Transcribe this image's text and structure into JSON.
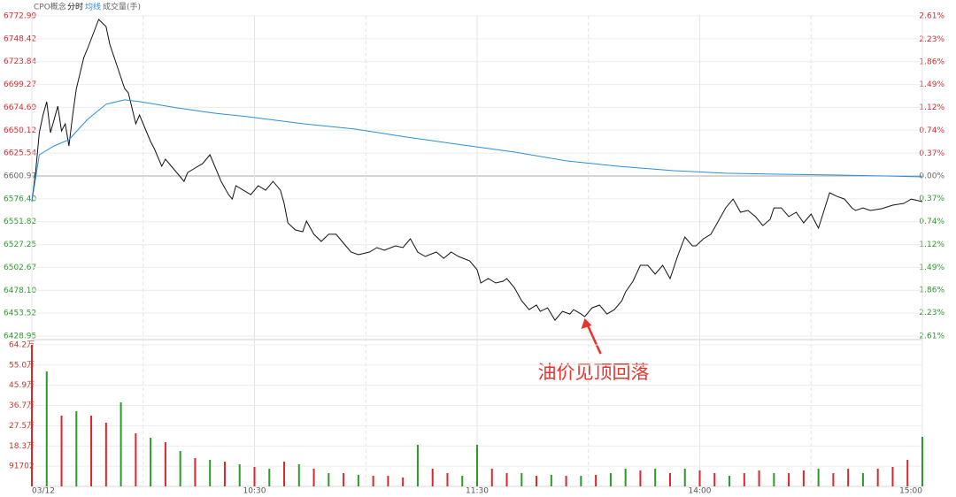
{
  "chart_data": [
    {
      "type": "line",
      "title": "CPO概念",
      "ylim": [
        6428.95,
        6772.99
      ],
      "yticks": [
        6772.99,
        6748.42,
        6723.84,
        6699.27,
        6674.69,
        6650.12,
        6625.54,
        6600.97,
        {
          "value": 6576.4,
          "label": "6576.40"
        },
        6551.82,
        6527.25,
        6502.67,
        {
          "value": 6478.1,
          "label": "6478.10"
        },
        6453.52,
        6428.95
      ],
      "y2lim": [
        -2.61,
        2.61
      ],
      "y2ticks": [
        {
          "value": 2.61,
          "label": "2.61%"
        },
        {
          "value": 2.23,
          "label": "2.23%"
        },
        {
          "value": 1.86,
          "label": "1.86%"
        },
        {
          "value": 1.49,
          "label": "1.49%"
        },
        {
          "value": 1.12,
          "label": "1.12%"
        },
        {
          "value": 0.74,
          "label": "0.74%"
        },
        {
          "value": 0.37,
          "label": "0.37%"
        },
        {
          "value": 0,
          "label": "0.00%"
        },
        {
          "value": -0.37,
          "label": "0.37%"
        },
        {
          "value": -0.74,
          "label": "0.74%"
        },
        {
          "value": -1.12,
          "label": "1.12%"
        },
        {
          "value": -1.49,
          "label": "1.49%"
        },
        {
          "value": -1.86,
          "label": "1.86%"
        },
        {
          "value": -2.23,
          "label": "2.23%"
        },
        {
          "value": -2.61,
          "label": "2.61%"
        }
      ],
      "xticks": [
        {
          "value": "09:30",
          "label": "03/12"
        },
        "10:30",
        "11:30",
        "14:00",
        "15:00"
      ],
      "up_color": "#d9272e",
      "down_color": "#2a9a2a",
      "grid": true,
      "series": [
        {
          "name": "分时",
          "color": "#111111",
          "x": [
            "09:30",
            "09:31",
            "09:32",
            "09:33",
            "09:34",
            "09:35",
            "09:36",
            "09:37",
            "09:38",
            "09:39",
            "09:40",
            "09:41",
            "09:42",
            "09:44",
            "09:45",
            "09:48",
            "09:50",
            "09:51",
            "09:53",
            "09:55",
            "09:56",
            "09:58",
            "09:59",
            "10:01",
            "10:02",
            "10:03",
            "10:05",
            "10:06",
            "10:08",
            "10:10",
            "10:11",
            "10:12",
            "10:14",
            "10:16",
            "10:18",
            "10:20",
            "10:21",
            "10:23",
            "10:24",
            "10:25",
            "10:27",
            "10:29",
            "10:31",
            "10:33",
            "10:35",
            "10:37",
            "10:38",
            "10:39",
            "10:41",
            "10:43",
            "10:44",
            "10:46",
            "10:48",
            "10:50",
            "10:52",
            "10:54",
            "10:56",
            "10:58",
            "11:01",
            "11:03",
            "11:05",
            "11:08",
            "11:10",
            "11:12",
            "11:14",
            "11:16",
            "11:19",
            "11:21",
            "11:23",
            "11:25",
            "11:28",
            "11:30",
            "13:01",
            "13:03",
            "13:05",
            "13:07",
            "13:08",
            "13:10",
            "13:12",
            "13:14",
            "13:16",
            "13:17",
            "13:19",
            "13:21",
            "13:23",
            "13:25",
            "13:26",
            "13:28",
            "13:29",
            "13:31",
            "13:33",
            "13:35",
            "13:37",
            "13:39",
            "13:40",
            "13:42",
            "13:44",
            "13:46",
            "13:48",
            "13:50",
            "13:52",
            "13:54",
            "13:56",
            "13:58",
            "13:59",
            "14:01",
            "14:03",
            "14:05",
            "14:07",
            "14:09",
            "14:11",
            "14:13",
            "14:15",
            "14:17",
            "14:19",
            "14:20",
            "14:22",
            "14:24",
            "14:26",
            "14:28",
            "14:30",
            "14:32",
            "14:33",
            "14:35",
            "14:37",
            "14:39",
            "14:41",
            "14:42",
            "14:44",
            "14:46",
            "14:49",
            "14:52",
            "14:55",
            "14:57",
            "15:00"
          ],
          "values": [
            6573.4,
            6604.7,
            6647.5,
            6666.5,
            6680.8,
            6647.5,
            6661.8,
            6676.0,
            6649.4,
            6657.0,
            6633.3,
            6666.5,
            6695.0,
            6728.3,
            6737.8,
            6769.2,
            6761.6,
            6742.6,
            6718.8,
            6695.0,
            6690.3,
            6657.0,
            6666.5,
            6647.5,
            6638.0,
            6630.4,
            6611.4,
            6619.0,
            6609.5,
            6600.0,
            6595.2,
            6604.7,
            6609.5,
            6614.2,
            6623.8,
            6604.7,
            6595.2,
            6580.9,
            6576.2,
            6590.5,
            6585.7,
            6580.9,
            6590.5,
            6585.7,
            6595.2,
            6585.7,
            6571.5,
            6550.6,
            6543.0,
            6541.1,
            6552.5,
            6538.3,
            6530.6,
            6538.3,
            6538.3,
            6528.7,
            6519.2,
            6516.4,
            6519.2,
            6524.0,
            6521.1,
            6525.9,
            6524.0,
            6533.5,
            6519.2,
            6514.5,
            6519.2,
            6512.5,
            6519.2,
            6514.5,
            6509.7,
            6500.2,
            6486.0,
            6490.7,
            6486.0,
            6487.9,
            6490.7,
            6481.2,
            6466.9,
            6457.4,
            6462.2,
            6455.5,
            6459.3,
            6446.0,
            6455.5,
            6452.6,
            6457.4,
            6452.6,
            6449.8,
            6459.3,
            6462.2,
            6452.6,
            6457.4,
            6466.9,
            6476.4,
            6487.9,
            6505.0,
            6505.0,
            6495.5,
            6505.0,
            6490.7,
            6514.5,
            6535.4,
            6525.9,
            6525.9,
            6533.5,
            6538.3,
            6552.5,
            6566.7,
            6576.2,
            6562.0,
            6563.9,
            6557.3,
            6547.7,
            6554.4,
            6566.7,
            6566.7,
            6557.3,
            6562.0,
            6550.6,
            6560.1,
            6544.9,
            6557.3,
            6582.9,
            6579.0,
            6576.2,
            6566.7,
            6563.9,
            6566.7,
            6563.9,
            6565.8,
            6569.6,
            6571.5,
            6576.2,
            6573.4
          ]
        },
        {
          "name": "均线",
          "color": "#2b8fd6",
          "x": [
            "09:30",
            "09:32",
            "09:36",
            "09:40",
            "09:45",
            "09:50",
            "09:55",
            "09:59",
            "10:09",
            "10:19",
            "10:28",
            "10:43",
            "10:57",
            "11:11",
            "11:26",
            "13:10",
            "13:24",
            "13:38",
            "13:53",
            "14:07",
            "14:21",
            "14:36",
            "14:50",
            "15:00"
          ],
          "values": [
            6573.4,
            6623.8,
            6633.3,
            6640.0,
            6661.8,
            6678.0,
            6682.8,
            6680.9,
            6674.2,
            6668.5,
            6664.7,
            6657.1,
            6651.4,
            6642.8,
            6634.3,
            6626.7,
            6617.2,
            6611.4,
            6606.7,
            6603.9,
            6602.9,
            6602.0,
            6601.0,
            6600.0
          ]
        }
      ],
      "annotations": [
        {
          "text": "油价见顶回落",
          "x": "13:29",
          "y": 6449.8
        }
      ]
    },
    {
      "type": "bar",
      "title": "成交量(手)",
      "ylim": [
        0,
        642000
      ],
      "yticks": [
        {
          "value": 642000,
          "label": "64.2万"
        },
        {
          "value": 550000,
          "label": "55.0万"
        },
        {
          "value": 459000,
          "label": "45.9万"
        },
        {
          "value": 367000,
          "label": "36.7万"
        },
        {
          "value": 275000,
          "label": "27.5万"
        },
        {
          "value": 183000,
          "label": "18.3万"
        },
        91702
      ],
      "x": [
        "09:30",
        "09:34",
        "09:38",
        "09:42",
        "09:46",
        "09:50",
        "09:54",
        "09:58",
        "10:02",
        "10:06",
        "10:10",
        "10:14",
        "10:18",
        "10:22",
        "10:26",
        "10:30",
        "10:34",
        "10:38",
        "10:42",
        "10:46",
        "10:50",
        "10:54",
        "10:58",
        "11:02",
        "11:06",
        "11:10",
        "11:14",
        "11:18",
        "11:22",
        "11:26",
        "11:30",
        "13:04",
        "13:08",
        "13:12",
        "13:16",
        "13:20",
        "13:24",
        "13:28",
        "13:32",
        "13:36",
        "13:40",
        "13:44",
        "13:48",
        "13:52",
        "13:56",
        "14:00",
        "14:04",
        "14:08",
        "14:12",
        "14:16",
        "14:20",
        "14:24",
        "14:28",
        "14:32",
        "14:36",
        "14:40",
        "14:44",
        "14:48",
        "14:52",
        "14:56",
        "15:00"
      ],
      "values": [
        642000,
        521600,
        321000,
        341000,
        321000,
        288900,
        381100,
        240700,
        220700,
        200600,
        160500,
        128400,
        120400,
        112300,
        100300,
        88300,
        80200,
        112300,
        100300,
        80200,
        60200,
        60200,
        52200,
        48100,
        48100,
        40100,
        188600,
        80200,
        60200,
        48100,
        188600,
        80200,
        60200,
        60200,
        48100,
        52200,
        48100,
        48100,
        52200,
        60200,
        80200,
        72200,
        80200,
        60200,
        80200,
        72200,
        60200,
        48100,
        60200,
        72200,
        60200,
        60200,
        72200,
        80200,
        60200,
        80200,
        60200,
        80200,
        88300,
        120400,
        224700
      ],
      "colors": [
        "#d9272e",
        "#2a9a2a",
        "#d9272e",
        "#2a9a2a",
        "#d9272e",
        "#d9272e",
        "#2a9a2a",
        "#d9272e",
        "#2a9a2a",
        "#d9272e",
        "#2a9a2a",
        "#d9272e",
        "#2a9a2a",
        "#d9272e",
        "#2a9a2a",
        "#d9272e",
        "#2a9a2a",
        "#d9272e",
        "#2a9a2a",
        "#d9272e",
        "#2a9a2a",
        "#d9272e",
        "#2a9a2a",
        "#d9272e",
        "#d9272e",
        "#d9272e",
        "#2a9a2a",
        "#d9272e",
        "#d9272e",
        "#2a9a2a",
        "#2a9a2a",
        "#d9272e",
        "#d9272e",
        "#2a9a2a",
        "#d9272e",
        "#2a9a2a",
        "#d9272e",
        "#2a9a2a",
        "#d9272e",
        "#2a9a2a",
        "#2a9a2a",
        "#d9272e",
        "#2a9a2a",
        "#d9272e",
        "#2a9a2a",
        "#d9272e",
        "#d9272e",
        "#2a9a2a",
        "#d9272e",
        "#d9272e",
        "#2a9a2a",
        "#d9272e",
        "#d9272e",
        "#2a9a2a",
        "#d9272e",
        "#d9272e",
        "#2a9a2a",
        "#d9272e",
        "#d9272e",
        "#d9272e",
        "#2a9a2a"
      ]
    }
  ]
}
